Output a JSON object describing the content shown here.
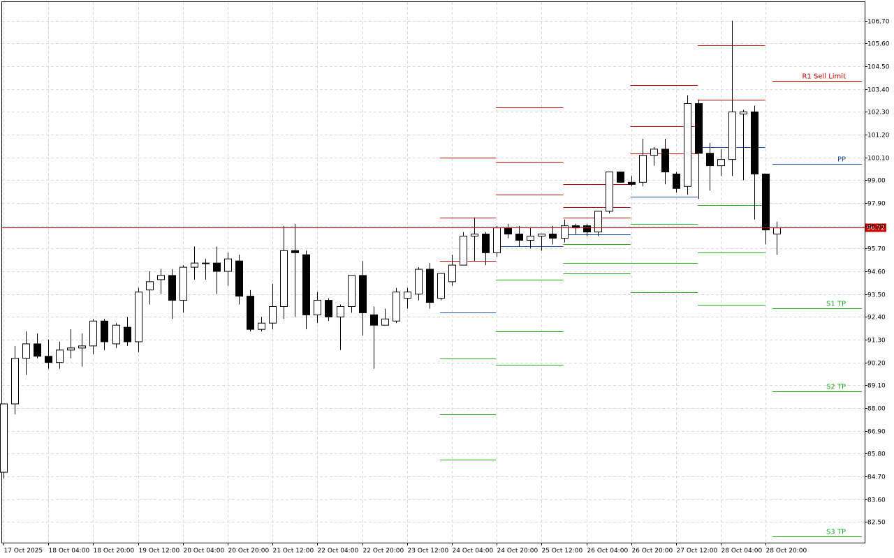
{
  "chart_data": {
    "type": "candlestick",
    "ylim": [
      81.5,
      107.6
    ],
    "y_ticks": [
      "106.70",
      "105.60",
      "104.50",
      "103.40",
      "102.30",
      "101.20",
      "100.10",
      "99.00",
      "97.90",
      "96.80",
      "95.70",
      "94.60",
      "93.50",
      "92.40",
      "91.30",
      "90.20",
      "89.10",
      "88.00",
      "86.90",
      "85.80",
      "84.70",
      "83.60",
      "82.50"
    ],
    "x_ticks": [
      {
        "index": 0,
        "label": "17 Oct 2025"
      },
      {
        "index": 4,
        "label": "18 Oct 04:00"
      },
      {
        "index": 8,
        "label": "18 Oct 20:00"
      },
      {
        "index": 12,
        "label": "19 Oct 12:00"
      },
      {
        "index": 16,
        "label": "20 Oct 04:00"
      },
      {
        "index": 20,
        "label": "20 Oct 20:00"
      },
      {
        "index": 24,
        "label": "21 Oct 12:00"
      },
      {
        "index": 28,
        "label": "22 Oct 04:00"
      },
      {
        "index": 32,
        "label": "22 Oct 20:00"
      },
      {
        "index": 36,
        "label": "23 Oct 12:00"
      },
      {
        "index": 40,
        "label": "24 Oct 04:00"
      },
      {
        "index": 44,
        "label": "24 Oct 20:00"
      },
      {
        "index": 48,
        "label": "25 Oct 12:00"
      },
      {
        "index": 52,
        "label": "26 Oct 04:00"
      },
      {
        "index": 56,
        "label": "26 Oct 20:00"
      },
      {
        "index": 60,
        "label": "27 Oct 12:00"
      },
      {
        "index": 64,
        "label": "28 Oct 04:00"
      },
      {
        "index": 68,
        "label": "28 Oct 20:00"
      }
    ],
    "candles": [
      [
        84.9,
        88.2,
        84.6,
        88.2
      ],
      [
        88.2,
        91.0,
        87.7,
        90.4
      ],
      [
        90.4,
        91.7,
        89.6,
        91.1
      ],
      [
        91.1,
        91.6,
        90.4,
        90.5
      ],
      [
        90.5,
        91.3,
        89.9,
        90.2
      ],
      [
        90.2,
        91.2,
        89.9,
        90.8
      ],
      [
        90.8,
        91.8,
        90.4,
        90.9
      ],
      [
        90.9,
        91.6,
        90.0,
        91.0
      ],
      [
        91.0,
        92.3,
        90.6,
        92.2
      ],
      [
        92.2,
        92.3,
        90.8,
        91.2
      ],
      [
        91.1,
        92.1,
        90.9,
        92.0
      ],
      [
        91.9,
        92.4,
        91.0,
        91.2
      ],
      [
        91.2,
        93.8,
        90.7,
        93.6
      ],
      [
        93.7,
        94.6,
        93.0,
        94.1
      ],
      [
        94.2,
        94.7,
        93.5,
        94.4
      ],
      [
        94.4,
        94.7,
        92.3,
        93.2
      ],
      [
        93.2,
        94.9,
        92.6,
        94.8
      ],
      [
        94.8,
        95.8,
        94.2,
        95.0
      ],
      [
        95.0,
        95.2,
        94.2,
        95.0
      ],
      [
        95.0,
        95.8,
        93.5,
        94.6
      ],
      [
        94.6,
        95.5,
        93.9,
        95.2
      ],
      [
        95.1,
        95.4,
        93.0,
        93.4
      ],
      [
        93.4,
        93.7,
        91.7,
        91.8
      ],
      [
        91.8,
        92.4,
        91.7,
        92.1
      ],
      [
        92.1,
        94.0,
        91.8,
        92.9
      ],
      [
        92.9,
        96.8,
        92.3,
        95.6
      ],
      [
        95.6,
        96.9,
        92.4,
        95.5
      ],
      [
        95.4,
        95.6,
        91.8,
        92.5
      ],
      [
        92.5,
        93.6,
        92.1,
        93.2
      ],
      [
        93.2,
        93.3,
        92.2,
        92.4
      ],
      [
        92.4,
        93.0,
        90.8,
        92.9
      ],
      [
        92.9,
        94.4,
        92.6,
        94.4
      ],
      [
        94.4,
        95.1,
        91.5,
        92.6
      ],
      [
        92.5,
        92.9,
        89.9,
        92.0
      ],
      [
        92.0,
        92.8,
        92.0,
        92.3
      ],
      [
        92.2,
        93.8,
        92.1,
        93.6
      ],
      [
        93.3,
        93.8,
        92.8,
        93.6
      ],
      [
        93.5,
        94.8,
        93.2,
        94.7
      ],
      [
        94.7,
        95.0,
        92.8,
        93.1
      ],
      [
        93.3,
        94.5,
        93.2,
        94.5
      ],
      [
        94.1,
        95.4,
        93.9,
        94.9
      ],
      [
        94.9,
        96.5,
        94.9,
        96.3
      ],
      [
        96.3,
        97.2,
        95.1,
        96.4
      ],
      [
        96.4,
        96.5,
        94.9,
        95.5
      ],
      [
        95.5,
        96.8,
        95.3,
        96.7
      ],
      [
        96.7,
        96.9,
        96.2,
        96.4
      ],
      [
        96.4,
        96.8,
        95.8,
        96.1
      ],
      [
        96.1,
        96.7,
        95.7,
        96.3
      ],
      [
        96.3,
        96.4,
        95.6,
        96.4
      ],
      [
        96.4,
        96.8,
        95.9,
        96.2
      ],
      [
        96.2,
        97.1,
        96.0,
        96.8
      ],
      [
        96.8,
        96.9,
        96.4,
        96.7
      ],
      [
        96.8,
        96.9,
        96.3,
        96.5
      ],
      [
        96.5,
        97.5,
        96.3,
        97.5
      ],
      [
        97.5,
        99.4,
        97.4,
        99.4
      ],
      [
        99.4,
        99.4,
        98.9,
        98.9
      ],
      [
        98.9,
        99.2,
        98.7,
        98.8
      ],
      [
        98.9,
        101.0,
        98.7,
        100.2
      ],
      [
        100.2,
        100.6,
        99.7,
        100.5
      ],
      [
        100.5,
        101.0,
        98.8,
        99.4
      ],
      [
        99.3,
        99.4,
        98.4,
        98.6
      ],
      [
        98.7,
        103.1,
        98.3,
        102.7
      ],
      [
        102.7,
        102.9,
        98.1,
        100.3
      ],
      [
        100.3,
        100.8,
        98.5,
        99.7
      ],
      [
        99.7,
        100.5,
        99.2,
        100.0
      ],
      [
        100.0,
        106.7,
        99.2,
        102.3
      ],
      [
        102.2,
        102.4,
        99.0,
        102.3
      ],
      [
        102.3,
        102.6,
        97.1,
        99.3
      ],
      [
        99.3,
        99.3,
        95.9,
        96.6
      ],
      [
        96.4,
        97.0,
        95.4,
        96.7
      ]
    ],
    "current_price": 96.72,
    "current_price_label": "96.72",
    "pivot_levels": [
      {
        "from": 39,
        "to": 44,
        "color": "#cc0000",
        "values": [
          100.1,
          97.2,
          95.1
        ]
      },
      {
        "from": 39,
        "to": 44,
        "color": "#1a4fa0",
        "values": [
          92.6
        ]
      },
      {
        "from": 39,
        "to": 44,
        "color": "#22aa22",
        "values": [
          90.4,
          87.7,
          85.5
        ]
      },
      {
        "from": 44,
        "to": 50,
        "color": "#cc0000",
        "values": [
          102.5,
          99.9,
          98.3
        ]
      },
      {
        "from": 44,
        "to": 50,
        "color": "#1a4fa0",
        "values": [
          95.8
        ]
      },
      {
        "from": 44,
        "to": 50,
        "color": "#22aa22",
        "values": [
          94.2,
          91.7,
          90.1
        ]
      },
      {
        "from": 50,
        "to": 56,
        "color": "#cc0000",
        "values": [
          98.8,
          97.7,
          97.2
        ]
      },
      {
        "from": 50,
        "to": 56,
        "color": "#1a4fa0",
        "values": [
          96.4
        ]
      },
      {
        "from": 50,
        "to": 56,
        "color": "#22aa22",
        "values": [
          95.9,
          95.0,
          94.5
        ]
      },
      {
        "from": 56,
        "to": 62,
        "color": "#cc0000",
        "values": [
          103.6,
          101.6,
          100.3
        ]
      },
      {
        "from": 56,
        "to": 62,
        "color": "#1a4fa0",
        "values": [
          98.2
        ]
      },
      {
        "from": 56,
        "to": 62,
        "color": "#22aa22",
        "values": [
          96.9,
          95.0,
          93.6
        ]
      },
      {
        "from": 62,
        "to": 68,
        "color": "#cc0000",
        "values": [
          105.5,
          102.9
        ]
      },
      {
        "from": 62,
        "to": 68,
        "color": "#1a4fa0",
        "values": [
          100.6
        ]
      },
      {
        "from": 62,
        "to": 68,
        "color": "#22aa22",
        "values": [
          97.8,
          95.5,
          93.0
        ]
      }
    ],
    "labeled_levels": [
      {
        "label": "R1 Sell Limit",
        "value": 103.8,
        "color": "#cc0000"
      },
      {
        "label": "PP",
        "value": 99.8,
        "color": "#1a4fa0"
      },
      {
        "label": "S1 TP",
        "value": 92.8,
        "color": "#22aa22"
      },
      {
        "label": "S2 TP",
        "value": 88.8,
        "color": "#22aa22"
      },
      {
        "label": "S3 TP",
        "value": 81.8,
        "color": "#22aa22"
      }
    ],
    "colors": {
      "grid": "#d9d9d9",
      "current_line": "#cc0000",
      "price_tag": "#cc0000"
    }
  }
}
